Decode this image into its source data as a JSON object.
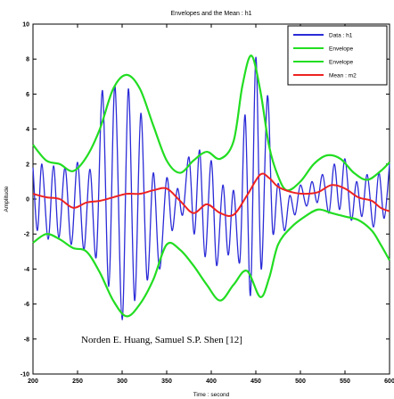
{
  "chart_data": {
    "type": "line",
    "title": "Envelopes and the Mean : h1",
    "xlabel": "Time : second",
    "ylabel": "Amplitude",
    "xlim": [
      200,
      600
    ],
    "ylim": [
      -10,
      10
    ],
    "xticks": [
      200,
      250,
      300,
      350,
      400,
      450,
      500,
      550,
      600
    ],
    "yticks": [
      -10,
      -8,
      -6,
      -4,
      -2,
      0,
      2,
      4,
      6,
      8,
      10
    ],
    "grid": false,
    "legend_position": "top-right",
    "annotation": "Norden E. Huang, Samuel S.P. Shen [12]",
    "series": [
      {
        "name": "Data : h1",
        "color": "#2b2bd8",
        "x": [
          200,
          205,
          210,
          217,
          223,
          229,
          236,
          243,
          250,
          257,
          264,
          271,
          278,
          285,
          292,
          300,
          307,
          314,
          321,
          328,
          335,
          342,
          350,
          356,
          362,
          368,
          375,
          381,
          387,
          393,
          400,
          406,
          413,
          419,
          425,
          432,
          438,
          444,
          450,
          456,
          463,
          469,
          475,
          482,
          488,
          494,
          500,
          507,
          513,
          519,
          525,
          532,
          538,
          544,
          550,
          557,
          563,
          569,
          575,
          582,
          588,
          594,
          600
        ],
        "y": [
          1.8,
          -1.8,
          2.0,
          -2.3,
          1.9,
          -2.2,
          1.8,
          -2.6,
          2.1,
          -2.9,
          1.7,
          -3.3,
          6.2,
          -5.0,
          6.5,
          -6.9,
          6.3,
          -5.8,
          4.9,
          -4.6,
          1.5,
          -4.0,
          1.2,
          -1.8,
          0.6,
          -0.9,
          2.4,
          -2.0,
          2.8,
          -3.3,
          2.2,
          -3.8,
          0.8,
          -3.2,
          0.5,
          -3.6,
          4.8,
          -5.5,
          8.1,
          -4.0,
          5.9,
          -1.9,
          0.9,
          -1.8,
          0.2,
          -0.9,
          0.8,
          -0.4,
          1.0,
          -0.2,
          1.4,
          -0.8,
          2.0,
          -0.6,
          2.3,
          -1.2,
          1.0,
          -1.0,
          1.4,
          -1.6,
          1.5,
          -1.1,
          2.0
        ]
      },
      {
        "name": "Envelope",
        "color": "#22dd22",
        "x": [
          200,
          215,
          230,
          245,
          260,
          275,
          290,
          305,
          320,
          335,
          350,
          365,
          380,
          395,
          410,
          425,
          435,
          445,
          455,
          465,
          475,
          485,
          500,
          515,
          530,
          545,
          560,
          575,
          590,
          600
        ],
        "y": [
          3.1,
          2.2,
          2.0,
          1.6,
          2.4,
          4.0,
          6.3,
          7.1,
          6.3,
          4.2,
          2.2,
          1.5,
          2.2,
          2.7,
          2.3,
          3.3,
          6.5,
          8.2,
          6.2,
          3.0,
          1.3,
          0.5,
          1.0,
          2.0,
          2.5,
          2.3,
          1.5,
          1.1,
          1.6,
          2.1
        ]
      },
      {
        "name": "Envelope",
        "color": "#22dd22",
        "x": [
          200,
          215,
          230,
          245,
          260,
          275,
          290,
          305,
          320,
          335,
          350,
          365,
          380,
          395,
          410,
          425,
          440,
          455,
          465,
          475,
          490,
          505,
          520,
          535,
          550,
          565,
          580,
          590,
          600
        ],
        "y": [
          -2.5,
          -2.0,
          -2.3,
          -2.8,
          -3.0,
          -4.2,
          -5.8,
          -6.7,
          -6.0,
          -4.6,
          -2.6,
          -2.9,
          -3.8,
          -4.9,
          -5.8,
          -4.9,
          -4.1,
          -5.6,
          -4.5,
          -2.6,
          -1.6,
          -1.0,
          -0.6,
          -0.8,
          -1.0,
          -1.2,
          -1.8,
          -2.6,
          -3.5
        ]
      },
      {
        "name": "Mean : m2",
        "color": "#ee2222",
        "x": [
          200,
          215,
          230,
          245,
          260,
          275,
          290,
          305,
          320,
          335,
          350,
          365,
          380,
          395,
          410,
          425,
          440,
          455,
          465,
          475,
          490,
          505,
          520,
          535,
          550,
          565,
          580,
          590,
          600
        ],
        "y": [
          0.3,
          0.1,
          0.0,
          -0.5,
          -0.2,
          -0.1,
          0.1,
          0.3,
          0.3,
          0.5,
          0.6,
          -0.1,
          -0.8,
          -0.3,
          -0.8,
          -0.9,
          0.2,
          1.4,
          1.2,
          0.7,
          0.4,
          0.3,
          0.4,
          0.8,
          0.6,
          0.1,
          -0.1,
          -0.5,
          -0.7
        ]
      }
    ]
  }
}
